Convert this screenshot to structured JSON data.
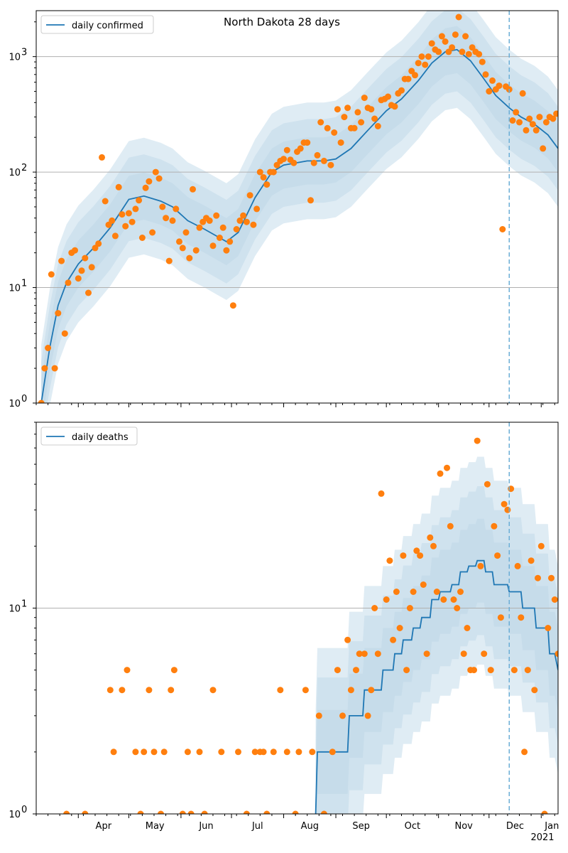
{
  "figure": {
    "title": "North Dakota 28 days"
  },
  "colors": {
    "line": "#1f77b4",
    "points": "#ff7f0e",
    "band": "#1f77b4",
    "grid": "#b0b0b0",
    "forecast_line": "#6baed6"
  },
  "x_axis": {
    "month_labels": [
      "Apr",
      "May",
      "Jun",
      "Jul",
      "Aug",
      "Sep",
      "Oct",
      "Nov",
      "Dec",
      "Jan"
    ],
    "year_label": "2021"
  },
  "chart_data": [
    {
      "type": "line",
      "title": "North Dakota 28 days",
      "legend": "daily confirmed",
      "legend_position": "top-left",
      "y_scale": "log",
      "ylim": [
        1,
        2500
      ],
      "y_ticks": [
        {
          "value": 1,
          "label": "10",
          "exp": "0"
        },
        {
          "value": 10,
          "label": "10",
          "exp": "1"
        },
        {
          "value": 100,
          "label": "10",
          "exp": "2"
        },
        {
          "value": 1000,
          "label": "10",
          "exp": "3"
        }
      ],
      "grid": true,
      "x_range": [
        "2020-03-07",
        "2021-01-11"
      ],
      "forecast_start": "2020-12-13",
      "series": [
        {
          "name": "daily confirmed",
          "kind": "line",
          "x": [
            "2020-03-10",
            "2020-03-15",
            "2020-03-20",
            "2020-03-25",
            "2020-04-01",
            "2020-04-10",
            "2020-04-20",
            "2020-05-01",
            "2020-05-10",
            "2020-05-20",
            "2020-05-27",
            "2020-06-05",
            "2020-06-15",
            "2020-06-22",
            "2020-06-28",
            "2020-07-05",
            "2020-07-15",
            "2020-07-25",
            "2020-08-01",
            "2020-08-15",
            "2020-08-25",
            "2020-09-01",
            "2020-09-10",
            "2020-09-20",
            "2020-10-01",
            "2020-10-10",
            "2020-10-20",
            "2020-10-28",
            "2020-11-05",
            "2020-11-12",
            "2020-11-20",
            "2020-11-28",
            "2020-12-05",
            "2020-12-13",
            "2020-12-20",
            "2020-12-28",
            "2021-01-05",
            "2021-01-11"
          ],
          "y": [
            1,
            3,
            7,
            11,
            16,
            22,
            33,
            58,
            62,
            56,
            50,
            38,
            32,
            28,
            25,
            30,
            60,
            100,
            115,
            125,
            125,
            130,
            160,
            230,
            340,
            430,
            620,
            880,
            1100,
            1150,
            920,
            640,
            460,
            360,
            300,
            260,
            210,
            160
          ]
        },
        {
          "name": "observed",
          "kind": "scatter",
          "x": [
            "2020-03-10",
            "2020-03-12",
            "2020-03-14",
            "2020-03-16",
            "2020-03-18",
            "2020-03-20",
            "2020-03-22",
            "2020-03-24",
            "2020-03-26",
            "2020-03-28",
            "2020-03-30",
            "2020-04-01",
            "2020-04-03",
            "2020-04-05",
            "2020-04-07",
            "2020-04-09",
            "2020-04-11",
            "2020-04-13",
            "2020-04-15",
            "2020-04-17",
            "2020-04-19",
            "2020-04-21",
            "2020-04-23",
            "2020-04-25",
            "2020-04-27",
            "2020-04-29",
            "2020-05-01",
            "2020-05-03",
            "2020-05-05",
            "2020-05-07",
            "2020-05-09",
            "2020-05-11",
            "2020-05-13",
            "2020-05-15",
            "2020-05-17",
            "2020-05-19",
            "2020-05-21",
            "2020-05-23",
            "2020-05-25",
            "2020-05-27",
            "2020-05-29",
            "2020-05-31",
            "2020-06-02",
            "2020-06-04",
            "2020-06-06",
            "2020-06-08",
            "2020-06-10",
            "2020-06-12",
            "2020-06-14",
            "2020-06-16",
            "2020-06-18",
            "2020-06-20",
            "2020-06-22",
            "2020-06-24",
            "2020-06-26",
            "2020-06-28",
            "2020-06-30",
            "2020-07-02",
            "2020-07-04",
            "2020-07-06",
            "2020-07-08",
            "2020-07-10",
            "2020-07-12",
            "2020-07-14",
            "2020-07-16",
            "2020-07-18",
            "2020-07-20",
            "2020-07-22",
            "2020-07-24",
            "2020-07-26",
            "2020-07-28",
            "2020-07-30",
            "2020-08-01",
            "2020-08-03",
            "2020-08-05",
            "2020-08-07",
            "2020-08-09",
            "2020-08-11",
            "2020-08-13",
            "2020-08-15",
            "2020-08-17",
            "2020-08-19",
            "2020-08-21",
            "2020-08-23",
            "2020-08-25",
            "2020-08-27",
            "2020-08-29",
            "2020-08-31",
            "2020-09-02",
            "2020-09-04",
            "2020-09-06",
            "2020-09-08",
            "2020-09-10",
            "2020-09-12",
            "2020-09-14",
            "2020-09-16",
            "2020-09-18",
            "2020-09-20",
            "2020-09-22",
            "2020-09-24",
            "2020-09-26",
            "2020-09-28",
            "2020-09-30",
            "2020-10-02",
            "2020-10-04",
            "2020-10-06",
            "2020-10-08",
            "2020-10-10",
            "2020-10-12",
            "2020-10-14",
            "2020-10-16",
            "2020-10-18",
            "2020-10-20",
            "2020-10-22",
            "2020-10-24",
            "2020-10-26",
            "2020-10-28",
            "2020-10-30",
            "2020-11-01",
            "2020-11-03",
            "2020-11-05",
            "2020-11-07",
            "2020-11-09",
            "2020-11-11",
            "2020-11-13",
            "2020-11-15",
            "2020-11-17",
            "2020-11-19",
            "2020-11-21",
            "2020-11-23",
            "2020-11-25",
            "2020-11-27",
            "2020-11-29",
            "2020-12-01",
            "2020-12-03",
            "2020-12-05",
            "2020-12-07",
            "2020-12-09",
            "2020-12-11",
            "2020-12-13",
            "2020-12-15",
            "2020-12-17",
            "2020-12-19",
            "2020-12-21",
            "2020-12-23",
            "2020-12-25",
            "2020-12-27",
            "2020-12-29",
            "2020-12-31",
            "2021-01-02",
            "2021-01-04",
            "2021-01-06",
            "2021-01-08",
            "2021-01-10"
          ],
          "y": [
            1,
            2,
            3,
            13,
            2,
            6,
            17,
            4,
            11,
            20,
            21,
            12,
            14,
            18,
            9,
            15,
            22,
            24,
            134,
            56,
            35,
            38,
            28,
            74,
            43,
            34,
            44,
            37,
            48,
            57,
            27,
            73,
            83,
            30,
            100,
            88,
            50,
            40,
            17,
            38,
            48,
            25,
            22,
            30,
            18,
            71,
            21,
            33,
            37,
            40,
            38,
            23,
            42,
            27,
            33,
            21,
            25,
            7,
            32,
            38,
            42,
            37,
            63,
            35,
            48,
            100,
            90,
            78,
            100,
            100,
            115,
            125,
            130,
            155,
            128,
            120,
            150,
            160,
            180,
            180,
            57,
            120,
            140,
            270,
            125,
            240,
            115,
            220,
            350,
            180,
            300,
            360,
            240,
            240,
            330,
            270,
            440,
            360,
            350,
            290,
            250,
            420,
            430,
            450,
            380,
            370,
            480,
            510,
            640,
            640,
            750,
            690,
            880,
            1000,
            850,
            1000,
            1300,
            1150,
            1100,
            1500,
            1350,
            1100,
            1200,
            1550,
            2200,
            1100,
            1500,
            1050,
            1200,
            1100,
            1050,
            900,
            700,
            500,
            620,
            520,
            560,
            32,
            550,
            520,
            280,
            330,
            270,
            480,
            230,
            290,
            260,
            230,
            300,
            160,
            270,
            300,
            290,
            320
          ]
        }
      ]
    },
    {
      "type": "line",
      "legend": "daily deaths",
      "legend_position": "top-left",
      "y_scale": "log",
      "ylim": [
        1,
        80
      ],
      "y_ticks": [
        {
          "value": 1,
          "label": "10",
          "exp": "0"
        },
        {
          "value": 10,
          "label": "10",
          "exp": "1"
        }
      ],
      "grid": true,
      "x_range": [
        "2020-03-07",
        "2021-01-11"
      ],
      "forecast_start": "2020-12-13",
      "series": [
        {
          "name": "daily deaths",
          "kind": "line",
          "x": [
            "2020-08-20",
            "2020-08-21",
            "2020-09-08",
            "2020-09-09",
            "2020-09-17",
            "2020-09-18",
            "2020-09-28",
            "2020-09-29",
            "2020-10-05",
            "2020-10-06",
            "2020-10-10",
            "2020-10-11",
            "2020-10-16",
            "2020-10-17",
            "2020-10-21",
            "2020-10-22",
            "2020-10-27",
            "2020-10-28",
            "2020-11-01",
            "2020-11-02",
            "2020-11-08",
            "2020-11-09",
            "2020-11-13",
            "2020-11-14",
            "2020-11-18",
            "2020-11-19",
            "2020-11-23",
            "2020-11-24",
            "2020-11-28",
            "2020-11-29",
            "2020-12-03",
            "2020-12-04",
            "2020-12-12",
            "2020-12-13",
            "2020-12-20",
            "2020-12-21",
            "2020-12-28",
            "2020-12-29",
            "2021-01-05",
            "2021-01-06",
            "2021-01-09",
            "2021-01-11"
          ],
          "y": [
            1,
            2,
            2,
            3,
            3,
            4,
            4,
            5,
            5,
            6,
            6,
            7,
            7,
            8,
            8,
            9,
            9,
            11,
            11,
            12,
            12,
            13,
            13,
            15,
            15,
            16,
            16,
            17,
            17,
            15,
            15,
            13,
            13,
            12,
            12,
            10,
            10,
            8,
            8,
            6,
            6,
            5
          ]
        },
        {
          "name": "observed",
          "kind": "scatter",
          "x": [
            "2020-03-25",
            "2020-04-05",
            "2020-04-20",
            "2020-04-22",
            "2020-04-27",
            "2020-04-30",
            "2020-05-05",
            "2020-05-08",
            "2020-05-10",
            "2020-05-13",
            "2020-05-16",
            "2020-05-20",
            "2020-05-22",
            "2020-05-26",
            "2020-05-28",
            "2020-06-02",
            "2020-06-05",
            "2020-06-07",
            "2020-06-12",
            "2020-06-15",
            "2020-06-20",
            "2020-06-25",
            "2020-07-05",
            "2020-07-10",
            "2020-07-15",
            "2020-07-18",
            "2020-07-20",
            "2020-07-22",
            "2020-07-26",
            "2020-07-30",
            "2020-08-03",
            "2020-08-08",
            "2020-08-10",
            "2020-08-14",
            "2020-08-18",
            "2020-08-22",
            "2020-08-25",
            "2020-08-30",
            "2020-09-02",
            "2020-09-05",
            "2020-09-08",
            "2020-09-10",
            "2020-09-13",
            "2020-09-15",
            "2020-09-18",
            "2020-09-20",
            "2020-09-22",
            "2020-09-24",
            "2020-09-26",
            "2020-09-28",
            "2020-10-01",
            "2020-10-03",
            "2020-10-05",
            "2020-10-07",
            "2020-10-09",
            "2020-10-11",
            "2020-10-13",
            "2020-10-15",
            "2020-10-17",
            "2020-10-19",
            "2020-10-21",
            "2020-10-23",
            "2020-10-25",
            "2020-10-27",
            "2020-10-29",
            "2020-10-31",
            "2020-11-02",
            "2020-11-04",
            "2020-11-06",
            "2020-11-08",
            "2020-11-10",
            "2020-11-12",
            "2020-11-14",
            "2020-11-16",
            "2020-11-18",
            "2020-11-20",
            "2020-11-22",
            "2020-11-24",
            "2020-11-26",
            "2020-11-28",
            "2020-11-30",
            "2020-12-02",
            "2020-12-04",
            "2020-12-06",
            "2020-12-08",
            "2020-12-10",
            "2020-12-12",
            "2020-12-14",
            "2020-12-16",
            "2020-12-18",
            "2020-12-20",
            "2020-12-22",
            "2020-12-24",
            "2020-12-26",
            "2020-12-28",
            "2020-12-30",
            "2021-01-01",
            "2021-01-03",
            "2021-01-05",
            "2021-01-07",
            "2021-01-09",
            "2021-01-11"
          ],
          "y": [
            1,
            1,
            4,
            2,
            4,
            5,
            2,
            1,
            2,
            4,
            2,
            1,
            2,
            4,
            5,
            1,
            2,
            1,
            2,
            1,
            4,
            2,
            2,
            1,
            2,
            2,
            2,
            1,
            2,
            4,
            2,
            1,
            2,
            4,
            2,
            3,
            1,
            2,
            5,
            3,
            7,
            4,
            5,
            6,
            6,
            3,
            4,
            10,
            6,
            36,
            11,
            17,
            7,
            12,
            8,
            18,
            5,
            10,
            12,
            19,
            18,
            13,
            6,
            22,
            20,
            12,
            45,
            11,
            48,
            25,
            11,
            10,
            12,
            6,
            8,
            5,
            5,
            65,
            16,
            6,
            40,
            5,
            25,
            18,
            9,
            32,
            30,
            38,
            5,
            16,
            9,
            2,
            5,
            17,
            4,
            14,
            20,
            1,
            8,
            14,
            11,
            6
          ]
        }
      ]
    }
  ]
}
